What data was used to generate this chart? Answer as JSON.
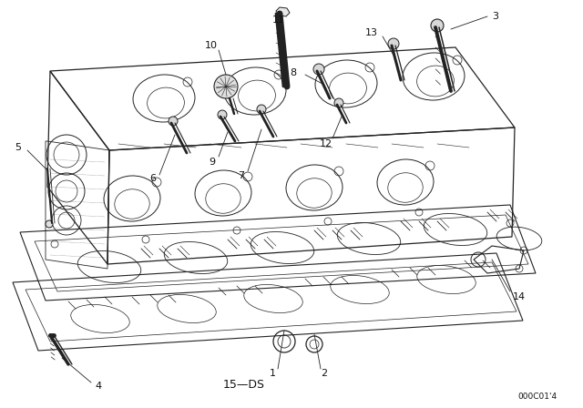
{
  "bg_color": "#ffffff",
  "line_color": "#222222",
  "label_color": "#111111",
  "watermark": "000C01'4",
  "bottom_label": "15—DS",
  "figsize": [
    6.4,
    4.48
  ],
  "dpi": 100
}
